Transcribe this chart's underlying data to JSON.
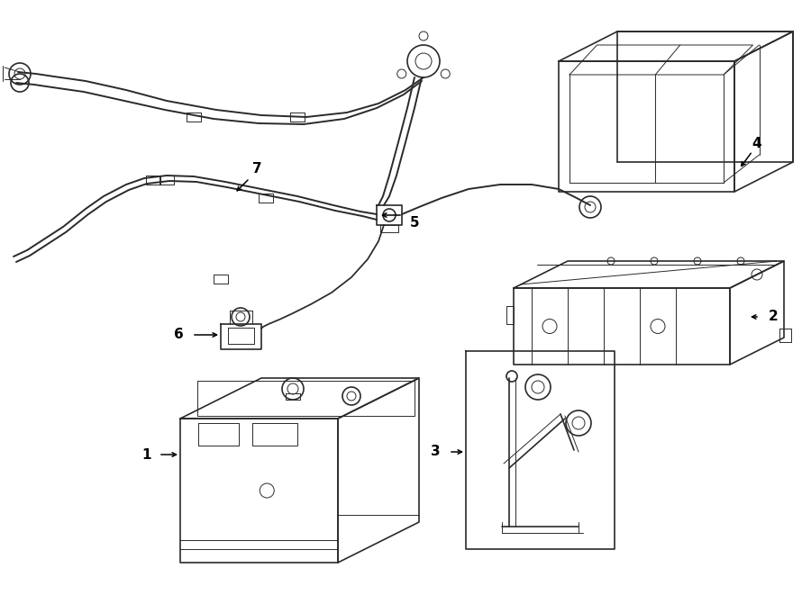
{
  "bg_color": "#ffffff",
  "line_color": "#2a2a2a",
  "figsize": [
    9.0,
    6.61
  ],
  "dpi": 100,
  "lw_main": 1.2,
  "lw_detail": 0.7,
  "lw_cable": 1.4
}
